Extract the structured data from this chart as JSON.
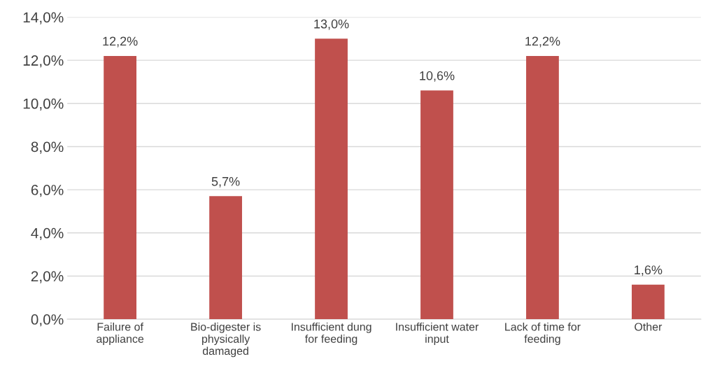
{
  "chart_data": {
    "type": "bar",
    "categories": [
      "Failure of\nappliance",
      "Bio-digester is\nphysically\ndamaged",
      "Insufficient dung\nfor feeding",
      "Insufficient water\ninput",
      "Lack of time for\nfeeding",
      "Other"
    ],
    "values": [
      12.2,
      5.7,
      13.0,
      10.6,
      12.2,
      1.6
    ],
    "color": "#c0504d",
    "value_labels": [
      "12,2%",
      "5,7%",
      "13,0%",
      "10,6%",
      "12,2%",
      "1,6%"
    ],
    "ylim": [
      0,
      14
    ],
    "yticks": [
      {
        "value": 0,
        "label": "0,0%"
      },
      {
        "value": 2,
        "label": "2,0%"
      },
      {
        "value": 4,
        "label": "4,0%"
      },
      {
        "value": 6,
        "label": "6,0%"
      },
      {
        "value": 8,
        "label": "8,0%"
      },
      {
        "value": 10,
        "label": "10,0%"
      },
      {
        "value": 12,
        "label": "12,0%"
      },
      {
        "value": 14,
        "label": "14,0%"
      }
    ],
    "grid": "y",
    "legend": false
  }
}
